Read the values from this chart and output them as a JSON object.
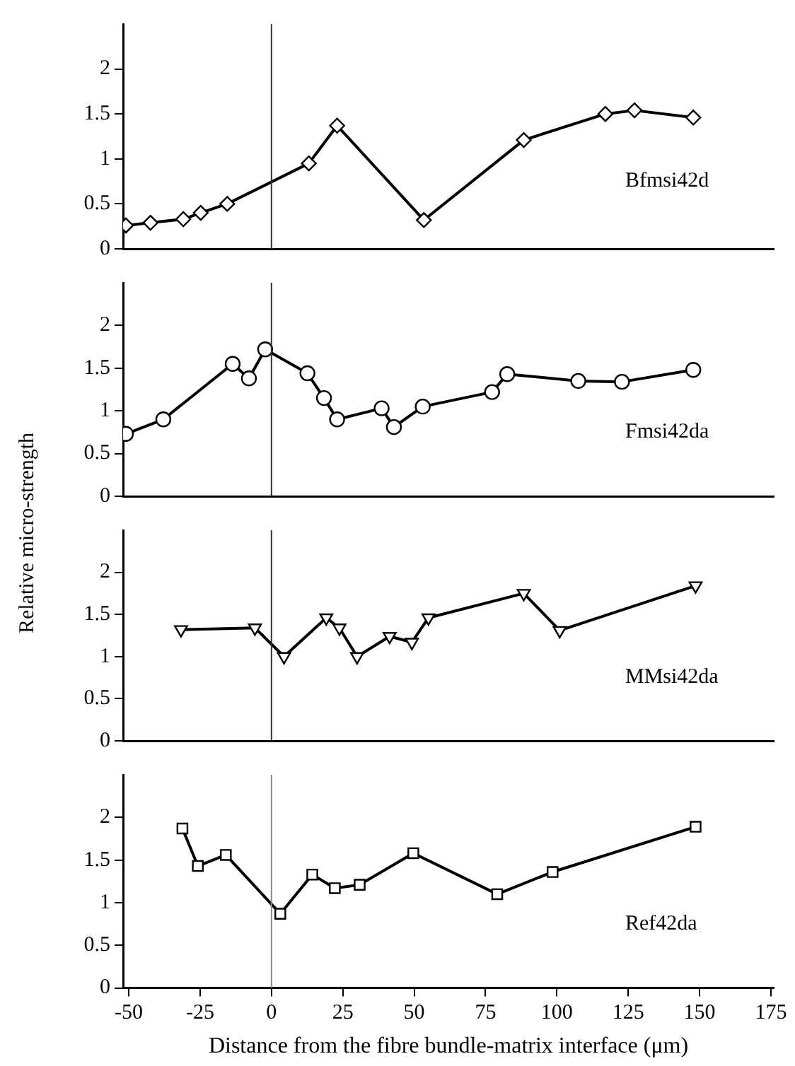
{
  "chart_data": [
    {
      "type": "line",
      "xlim": [
        -52,
        176
      ],
      "ylim": [
        0,
        2.5
      ],
      "yticks": [
        0,
        0.5,
        1,
        1.5,
        2
      ],
      "tick_labels": "y",
      "grid": false,
      "legend": false,
      "marker": "diamond",
      "line_style": "solid",
      "ref_lines": [
        {
          "axis": "x",
          "value": 0,
          "color": "#333333"
        }
      ],
      "series": [
        {
          "name": "Bfmsi42d",
          "color": "#000000",
          "x": [
            -51,
            -42.4,
            -30.9,
            -24.8,
            -15.5,
            13.1,
            23,
            53.4,
            88.4,
            117,
            127.2,
            147.8
          ],
          "values": [
            0.26,
            0.29,
            0.33,
            0.4,
            0.5,
            0.95,
            1.37,
            0.32,
            1.21,
            1.5,
            1.54,
            1.46
          ]
        }
      ]
    },
    {
      "type": "line",
      "ylabel": "Relative micro-strength",
      "xlim": [
        -52,
        176
      ],
      "ylim": [
        0,
        2.5
      ],
      "yticks": [
        0,
        0.5,
        1,
        1.5,
        2
      ],
      "tick_labels": "y",
      "grid": false,
      "legend": false,
      "marker": "circle",
      "line_style": "solid",
      "ref_lines": [
        {
          "axis": "x",
          "value": 0,
          "color": "#333333"
        }
      ],
      "series": [
        {
          "name": "Fmsi42da",
          "color": "#000000",
          "x": [
            -51,
            -37.9,
            -13.6,
            -7.9,
            -2.2,
            12.6,
            18.4,
            23,
            38.6,
            42.9,
            53,
            77.3,
            82.6,
            107.5,
            122.8,
            147.8
          ],
          "values": [
            0.73,
            0.9,
            1.55,
            1.38,
            1.72,
            1.44,
            1.15,
            0.9,
            1.03,
            0.81,
            1.05,
            1.22,
            1.43,
            1.35,
            1.34,
            1.48
          ]
        }
      ]
    },
    {
      "type": "line",
      "xlim": [
        -52,
        176
      ],
      "ylim": [
        0,
        2.5
      ],
      "yticks": [
        0,
        0.5,
        1,
        1.5,
        2
      ],
      "tick_labels": "y",
      "grid": false,
      "legend": false,
      "marker": "triangle",
      "line_style": "solid",
      "ref_lines": [
        {
          "axis": "x",
          "value": 0,
          "color": "#333333"
        }
      ],
      "series": [
        {
          "name": "MMsi42da",
          "color": "#000000",
          "x": [
            -31.7,
            -5.8,
            4.4,
            19.2,
            23.8,
            30,
            41.4,
            49.2,
            55,
            88.4,
            101,
            148.6
          ],
          "values": [
            1.32,
            1.34,
            1.0,
            1.46,
            1.34,
            1.0,
            1.24,
            1.17,
            1.46,
            1.75,
            1.31,
            1.84
          ]
        }
      ]
    },
    {
      "type": "line",
      "xlabel": "Distance from the fibre bundle-matrix interface (μm)",
      "xlim": [
        -52,
        176
      ],
      "ylim": [
        0,
        2.5
      ],
      "yticks": [
        0,
        0.5,
        1,
        1.5,
        2
      ],
      "xticks": [
        -50,
        -25,
        0,
        25,
        50,
        75,
        100,
        125,
        150,
        175
      ],
      "grid": false,
      "legend": false,
      "marker": "square",
      "line_style": "solid",
      "ref_lines": [
        {
          "axis": "x",
          "value": 0,
          "color": "#888888"
        }
      ],
      "series": [
        {
          "name": "Ref42da",
          "color": "#000000",
          "x": [
            -31.2,
            -25.8,
            -16,
            3.1,
            14.3,
            22.2,
            30.9,
            49.7,
            79.1,
            98.5,
            148.6
          ],
          "values": [
            1.87,
            1.43,
            1.56,
            0.87,
            1.33,
            1.17,
            1.21,
            1.58,
            1.1,
            1.36,
            1.89
          ]
        }
      ]
    }
  ]
}
